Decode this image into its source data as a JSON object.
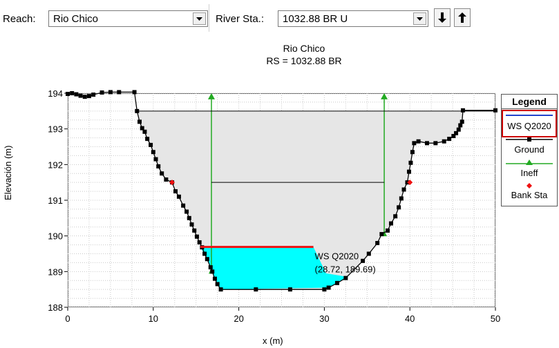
{
  "toolbar": {
    "reach_label": "Reach:",
    "reach_value": "Rio Chico",
    "river_sta_label": "River Sta.:",
    "river_sta_value": "1032.88 BR U",
    "down_icon": "arrow-down-icon",
    "up_icon": "arrow-up-icon"
  },
  "chart": {
    "title": "Rio Chico",
    "subtitle": "RS = 1032.88  BR",
    "tooltip_name": "WS Q2020",
    "tooltip_coords": "(28.72, 189.69)"
  },
  "legend": {
    "title": "Legend",
    "items": [
      "WS Q2020",
      "Ground",
      "Ineff",
      "Bank Sta"
    ]
  },
  "colors": {
    "water_fill": "#00ffff",
    "ws_line": "#ee1111",
    "ineff": "#22aa22",
    "bank": "#ee1111",
    "ground": "#000000",
    "ws_legend": "#2244cc",
    "area_fill": "#e6e6e6"
  },
  "chart_data": {
    "type": "line",
    "title": "Rio Chico",
    "subtitle": "RS = 1032.88  BR",
    "xlabel": "x (m)",
    "ylabel": "Elevación (m)",
    "xlim": [
      0,
      50
    ],
    "ylim": [
      188,
      194
    ],
    "xticks": [
      0,
      10,
      20,
      30,
      40,
      50
    ],
    "yticks": [
      188,
      189,
      190,
      191,
      192,
      193,
      194
    ],
    "grid": true,
    "legend_position": "right",
    "series": [
      {
        "name": "Ground",
        "points": [
          [
            0,
            193.98
          ],
          [
            0.5,
            194.0
          ],
          [
            1,
            193.97
          ],
          [
            1.5,
            193.93
          ],
          [
            2,
            193.9
          ],
          [
            2.5,
            193.92
          ],
          [
            3,
            193.96
          ],
          [
            4,
            194.02
          ],
          [
            5,
            194.03
          ],
          [
            6,
            194.03
          ],
          [
            7.8,
            194.03
          ],
          [
            8.1,
            193.5
          ],
          [
            8.4,
            193.2
          ],
          [
            8.7,
            193.02
          ],
          [
            9,
            192.92
          ],
          [
            9.3,
            192.72
          ],
          [
            9.7,
            192.55
          ],
          [
            10,
            192.35
          ],
          [
            10.3,
            192.15
          ],
          [
            10.6,
            191.95
          ],
          [
            11,
            191.75
          ],
          [
            11.5,
            191.58
          ],
          [
            12.2,
            191.5
          ],
          [
            12.6,
            191.25
          ],
          [
            13,
            191.1
          ],
          [
            13.5,
            190.85
          ],
          [
            13.9,
            190.68
          ],
          [
            14.2,
            190.5
          ],
          [
            14.5,
            190.32
          ],
          [
            14.8,
            190.15
          ],
          [
            15.1,
            189.98
          ],
          [
            15.4,
            189.82
          ],
          [
            15.7,
            189.68
          ],
          [
            16,
            189.5
          ],
          [
            16.3,
            189.35
          ],
          [
            16.7,
            189.12
          ],
          [
            16.9,
            189.0
          ],
          [
            17.2,
            188.8
          ],
          [
            17.5,
            188.65
          ],
          [
            17.9,
            188.5
          ],
          [
            22,
            188.5
          ],
          [
            26,
            188.5
          ],
          [
            30,
            188.5
          ],
          [
            30.5,
            188.55
          ],
          [
            31.5,
            188.68
          ],
          [
            32.5,
            188.82
          ],
          [
            34.5,
            189.3
          ],
          [
            35.2,
            189.5
          ],
          [
            36.2,
            189.8
          ],
          [
            36.7,
            190.05
          ],
          [
            37.4,
            190.15
          ],
          [
            37.8,
            190.35
          ],
          [
            38.3,
            190.55
          ],
          [
            38.7,
            190.8
          ],
          [
            39,
            191.05
          ],
          [
            39.3,
            191.3
          ],
          [
            39.7,
            191.5
          ],
          [
            39.9,
            191.8
          ],
          [
            40.1,
            192.05
          ],
          [
            40.3,
            192.35
          ],
          [
            40.5,
            192.6
          ],
          [
            41,
            192.65
          ],
          [
            42,
            192.6
          ],
          [
            43,
            192.6
          ],
          [
            44,
            192.65
          ],
          [
            44.6,
            192.72
          ],
          [
            45.1,
            192.8
          ],
          [
            45.4,
            192.88
          ],
          [
            45.7,
            192.98
          ],
          [
            45.9,
            193.1
          ],
          [
            46.1,
            193.2
          ],
          [
            46.2,
            193.52
          ],
          [
            50,
            193.52
          ]
        ]
      },
      {
        "name": "WS Q2020",
        "points": [
          [
            15.5,
            189.69
          ],
          [
            28.72,
            189.69
          ]
        ],
        "water_profile": [
          [
            15.5,
            189.69
          ],
          [
            28.72,
            189.69
          ],
          [
            30.2,
            188.95
          ],
          [
            32.8,
            188.85
          ],
          [
            30.5,
            188.55
          ],
          [
            17.9,
            188.5
          ],
          [
            17.5,
            188.65
          ],
          [
            16.9,
            189.0
          ],
          [
            16.3,
            189.35
          ]
        ]
      },
      {
        "name": "Ineff",
        "points": [
          [
            16.8,
            189.0
          ],
          [
            16.8,
            193.5
          ]
        ],
        "points_right": [
          [
            37.0,
            190.05
          ],
          [
            37.0,
            193.5
          ]
        ],
        "connector_elevation": 191.5
      },
      {
        "name": "Bank Sta",
        "points": [
          [
            12.2,
            191.5
          ],
          [
            40.0,
            191.5
          ]
        ]
      }
    ],
    "annotations": [
      {
        "text": "WS Q2020",
        "x": 28.72,
        "y": 189.69
      },
      {
        "text": "(28.72, 189.69)",
        "x": 28.72,
        "y": 189.69
      }
    ]
  }
}
